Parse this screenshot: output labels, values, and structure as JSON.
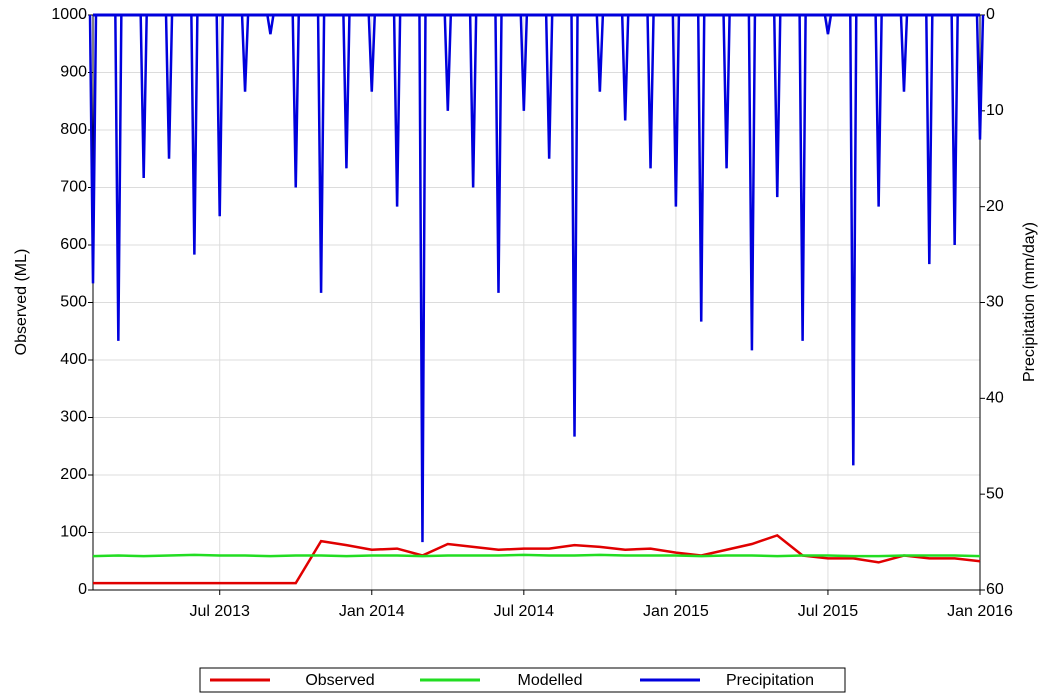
{
  "chart_data": {
    "type": "line",
    "x": [
      "2013-02",
      "2013-03",
      "2013-04",
      "2013-05",
      "2013-06",
      "2013-07",
      "2013-08",
      "2013-09",
      "2013-10",
      "2013-11",
      "2013-12",
      "2014-01",
      "2014-02",
      "2014-03",
      "2014-04",
      "2014-05",
      "2014-06",
      "2014-07",
      "2014-08",
      "2014-09",
      "2014-10",
      "2014-11",
      "2014-12",
      "2015-01",
      "2015-02",
      "2015-03",
      "2015-04",
      "2015-05",
      "2015-06",
      "2015-07",
      "2015-08",
      "2015-09",
      "2015-10",
      "2015-11",
      "2015-12",
      "2016-01"
    ],
    "xlim": [
      "2013-02",
      "2016-01"
    ],
    "xticks": [
      {
        "value": "2013-07",
        "label": "Jul 2013"
      },
      {
        "value": "2014-01",
        "label": "Jan 2014"
      },
      {
        "value": "2014-07",
        "label": "Jul 2014"
      },
      {
        "value": "2015-01",
        "label": "Jan 2015"
      },
      {
        "value": "2015-07",
        "label": "Jul 2015"
      },
      {
        "value": "2016-01",
        "label": "Jan 2016"
      }
    ],
    "ylabel": "Observed (ML)",
    "ylim": [
      0,
      1000
    ],
    "yticks": [
      0,
      100,
      200,
      300,
      400,
      500,
      600,
      700,
      800,
      900,
      1000
    ],
    "y2label": "Precipitation (mm/day)",
    "y2lim": [
      60,
      0
    ],
    "y2ticks": [
      0,
      10,
      20,
      30,
      40,
      50,
      60
    ],
    "grid": true,
    "legend": "bottom",
    "series": [
      {
        "name": "Observed",
        "color": "#e00000",
        "values": [
          12,
          12,
          12,
          12,
          12,
          12,
          12,
          12,
          12,
          85,
          78,
          70,
          72,
          60,
          80,
          75,
          70,
          72,
          72,
          78,
          75,
          70,
          72,
          65,
          60,
          70,
          80,
          95,
          60,
          55,
          55,
          48,
          60,
          55,
          55,
          50
        ]
      },
      {
        "name": "Modelled",
        "color": "#22dd22",
        "values": [
          59,
          60,
          59,
          60,
          61,
          60,
          60,
          59,
          60,
          60,
          59,
          60,
          60,
          59,
          60,
          60,
          60,
          61,
          60,
          60,
          61,
          60,
          60,
          60,
          59,
          60,
          60,
          59,
          60,
          60,
          59,
          59,
          60,
          60,
          60,
          59
        ]
      },
      {
        "name": "Precipitation",
        "color": "#0000dd",
        "axis": "y2",
        "values": [
          28,
          34,
          17,
          15,
          25,
          21,
          8,
          2,
          18,
          29,
          16,
          8,
          20,
          55,
          10,
          18,
          29,
          10,
          15,
          44,
          8,
          11,
          16,
          20,
          32,
          16,
          35,
          19,
          34,
          2,
          47,
          20,
          8,
          26,
          24,
          13
        ]
      }
    ]
  }
}
